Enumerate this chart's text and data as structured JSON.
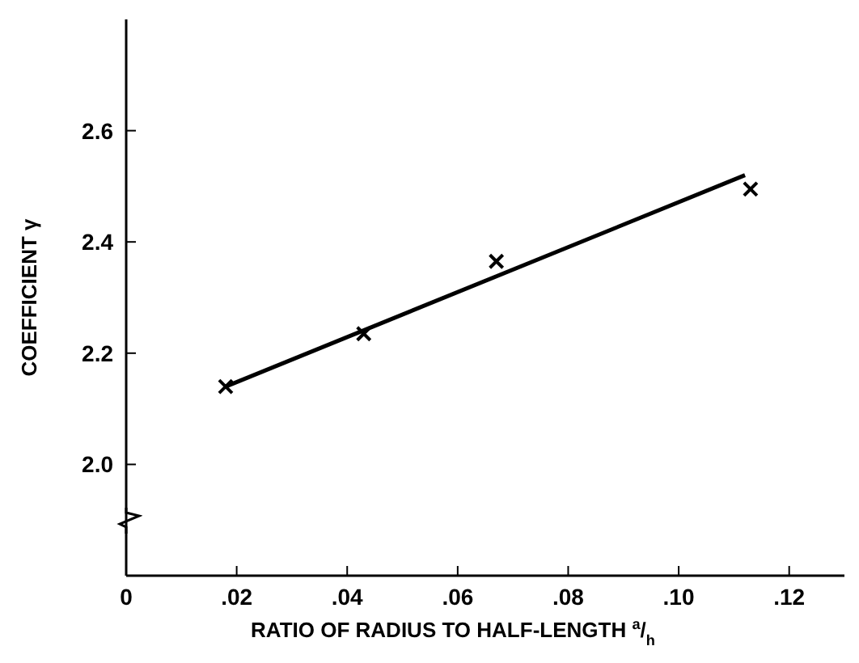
{
  "chart_data": {
    "type": "scatter",
    "xlabel": "RATIO OF RADIUS TO HALF-LENGTH $^{a}$/$_{h}$",
    "ylabel": "COEFFICIENT γ",
    "xlim": [
      0,
      0.13
    ],
    "ylim": [
      1.8,
      2.8
    ],
    "xticks": [
      {
        "value": 0,
        "label": "0"
      },
      {
        "value": 0.02,
        "label": ".02"
      },
      {
        "value": 0.04,
        "label": ".04"
      },
      {
        "value": 0.06,
        "label": ".06"
      },
      {
        "value": 0.08,
        "label": ".08"
      },
      {
        "value": 0.1,
        "label": ".10"
      },
      {
        "value": 0.12,
        "label": ".12"
      }
    ],
    "yticks": [
      {
        "value": 2,
        "label": "2.0"
      },
      {
        "value": 2.2,
        "label": "2.2"
      },
      {
        "value": 2.4,
        "label": "2.4"
      },
      {
        "value": 2.6,
        "label": "2.6"
      }
    ],
    "grid": false,
    "legend": false,
    "series": [
      {
        "color": "#000000",
        "marker": "cross",
        "x": [
          0.018,
          0.043,
          0.067,
          0.113
        ],
        "values": [
          2.14,
          2.235,
          2.365,
          2.495
        ]
      },
      {
        "type": "line",
        "color": "#000000",
        "marker": "none",
        "line_style": "solid",
        "x": [
          0.018,
          0.112
        ],
        "values": [
          2.14,
          2.52
        ]
      }
    ]
  }
}
